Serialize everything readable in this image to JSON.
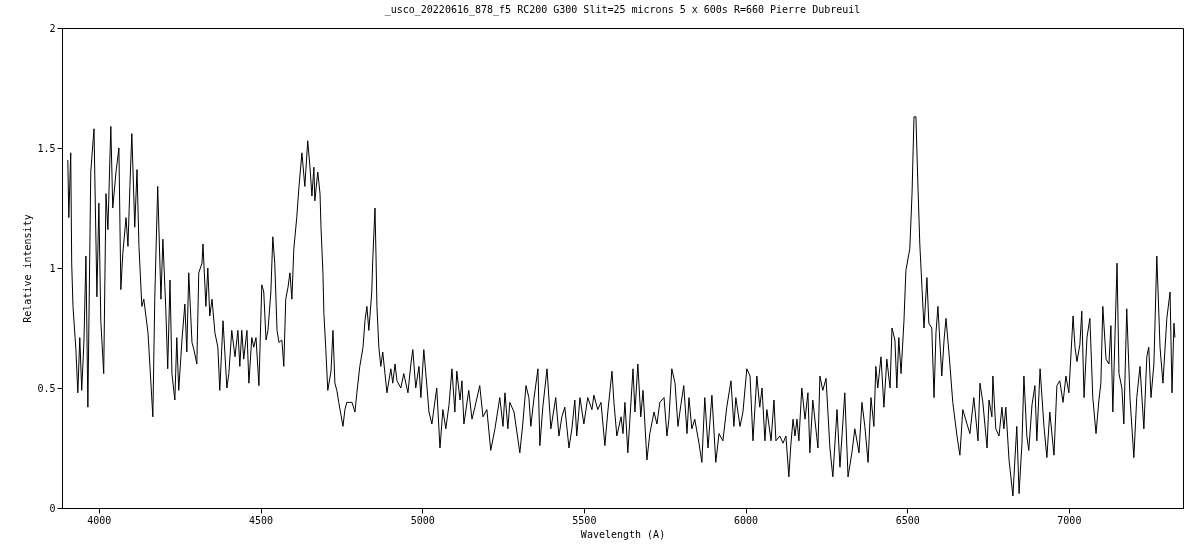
{
  "chart_data": {
    "type": "line",
    "title": "_usco_20220616_878_f5    RC200   G300 Slit=25 microns   5 x 600s  R=660   Pierre Dubreuil",
    "xlabel": "Wavelength (A)",
    "ylabel": "Relative intensity",
    "x": [
      3904,
      3907,
      3913,
      3916,
      3920,
      3929,
      3935,
      3941,
      3947,
      3954,
      3960,
      3966,
      3975,
      3985,
      3994,
      4000,
      4006,
      4015,
      4022,
      4028,
      4037,
      4043,
      4053,
      4062,
      4068,
      4074,
      4084,
      4090,
      4096,
      4102,
      4111,
      4118,
      4124,
      4133,
      4139,
      4152,
      4167,
      4173,
      4182,
      4192,
      4198,
      4207,
      4213,
      4220,
      4226,
      4235,
      4241,
      4247,
      4257,
      4266,
      4272,
      4278,
      4288,
      4294,
      4303,
      4309,
      4319,
      4322,
      4331,
      4337,
      4343,
      4350,
      4359,
      4368,
      4374,
      4384,
      4396,
      4402,
      4411,
      4421,
      4430,
      4436,
      4442,
      4448,
      4458,
      4464,
      4473,
      4479,
      4486,
      4495,
      4504,
      4510,
      4517,
      4523,
      4532,
      4538,
      4544,
      4551,
      4557,
      4566,
      4572,
      4578,
      4585,
      4591,
      4597,
      4603,
      4612,
      4619,
      4628,
      4637,
      4646,
      4653,
      4659,
      4665,
      4668,
      4677,
      4684,
      4687,
      4693,
      4696,
      4702,
      4708,
      4718,
      4724,
      4730,
      4736,
      4742,
      4755,
      4761,
      4767,
      4776,
      4783,
      4792,
      4798,
      4807,
      4817,
      4823,
      4829,
      4835,
      4844,
      4847,
      4854,
      4857,
      4860,
      4866,
      4872,
      4878,
      4891,
      4903,
      4909,
      4916,
      4922,
      4934,
      4943,
      4956,
      4965,
      4971,
      4980,
      4990,
      4996,
      5005,
      5015,
      5021,
      5030,
      5045,
      5055,
      5064,
      5073,
      5083,
      5092,
      5101,
      5107,
      5117,
      5123,
      5129,
      5144,
      5154,
      5163,
      5178,
      5188,
      5200,
      5212,
      5225,
      5240,
      5250,
      5256,
      5265,
      5271,
      5284,
      5302,
      5311,
      5321,
      5330,
      5336,
      5345,
      5358,
      5364,
      5373,
      5386,
      5398,
      5413,
      5423,
      5432,
      5441,
      5454,
      5463,
      5472,
      5478,
      5488,
      5500,
      5512,
      5525,
      5531,
      5543,
      5553,
      5565,
      5574,
      5587,
      5593,
      5602,
      5615,
      5621,
      5627,
      5636,
      5652,
      5658,
      5667,
      5676,
      5683,
      5695,
      5704,
      5717,
      5726,
      5735,
      5748,
      5757,
      5763,
      5772,
      5782,
      5791,
      5800,
      5809,
      5819,
      5825,
      5834,
      5843,
      5856,
      5865,
      5874,
      5884,
      5896,
      5908,
      5918,
      5930,
      5942,
      5955,
      5964,
      5970,
      5983,
      5992,
      6004,
      6014,
      6023,
      6035,
      6044,
      6051,
      6060,
      6066,
      6079,
      6088,
      6094,
      6106,
      6116,
      6125,
      6134,
      6140,
      6147,
      6153,
      6159,
      6165,
      6174,
      6184,
      6193,
      6199,
      6208,
      6224,
      6230,
      6239,
      6249,
      6261,
      6270,
      6283,
      6292,
      6307,
      6317,
      6329,
      6338,
      6351,
      6360,
      6369,
      6379,
      6388,
      6397,
      6403,
      6409,
      6419,
      6428,
      6437,
      6447,
      6453,
      6462,
      6468,
      6474,
      6481,
      6490,
      6496,
      6508,
      6515,
      6521,
      6527,
      6533,
      6539,
      6546,
      6552,
      6561,
      6567,
      6576,
      6583,
      6589,
      6595,
      6607,
      6614,
      6620,
      6629,
      6641,
      6654,
      6663,
      6672,
      6685,
      6694,
      6706,
      6719,
      6725,
      6734,
      6747,
      6753,
      6762,
      6765,
      6774,
      6784,
      6793,
      6799,
      6805,
      6815,
      6827,
      6833,
      6839,
      6846,
      6855,
      6861,
      6870,
      6876,
      6886,
      6895,
      6901,
      6911,
      6923,
      6932,
      6941,
      6954,
      6963,
      6972,
      6982,
      6991,
      7000,
      7013,
      7019,
      7025,
      7034,
      7040,
      7047,
      7056,
      7065,
      7074,
      7084,
      7093,
      7099,
      7105,
      7115,
      7124,
      7130,
      7136,
      7149,
      7155,
      7164,
      7170,
      7179,
      7189,
      7201,
      7210,
      7220,
      7232,
      7241,
      7247,
      7254,
      7263,
      7272,
      7282,
      7291,
      7303,
      7313,
      7319,
      7325,
      7328
    ],
    "series": [
      {
        "color": "#000000",
        "values": [
          1.45,
          1.21,
          1.48,
          1.02,
          0.84,
          0.66,
          0.48,
          0.71,
          0.49,
          0.7,
          1.05,
          0.42,
          1.4,
          1.58,
          0.88,
          1.27,
          0.78,
          0.56,
          1.31,
          1.16,
          1.59,
          1.25,
          1.4,
          1.5,
          0.91,
          1.06,
          1.21,
          1.09,
          1.34,
          1.56,
          1.17,
          1.41,
          1.09,
          0.84,
          0.87,
          0.73,
          0.38,
          0.88,
          1.34,
          0.87,
          1.12,
          0.83,
          0.58,
          0.95,
          0.56,
          0.45,
          0.71,
          0.49,
          0.7,
          0.85,
          0.65,
          0.98,
          0.69,
          0.66,
          0.6,
          0.98,
          1.02,
          1.1,
          0.84,
          1.0,
          0.8,
          0.87,
          0.73,
          0.67,
          0.49,
          0.78,
          0.5,
          0.56,
          0.74,
          0.63,
          0.74,
          0.59,
          0.74,
          0.62,
          0.74,
          0.52,
          0.71,
          0.67,
          0.71,
          0.51,
          0.93,
          0.9,
          0.7,
          0.74,
          0.9,
          1.13,
          1.02,
          0.74,
          0.69,
          0.7,
          0.59,
          0.87,
          0.92,
          0.98,
          0.87,
          1.08,
          1.21,
          1.34,
          1.48,
          1.34,
          1.53,
          1.42,
          1.3,
          1.42,
          1.28,
          1.4,
          1.31,
          1.17,
          0.98,
          0.81,
          0.66,
          0.49,
          0.57,
          0.74,
          0.52,
          0.49,
          0.44,
          0.34,
          0.41,
          0.44,
          0.44,
          0.44,
          0.4,
          0.48,
          0.59,
          0.67,
          0.78,
          0.84,
          0.74,
          0.9,
          1.03,
          1.25,
          1.06,
          0.84,
          0.67,
          0.59,
          0.65,
          0.48,
          0.58,
          0.52,
          0.6,
          0.53,
          0.5,
          0.56,
          0.48,
          0.6,
          0.66,
          0.5,
          0.59,
          0.46,
          0.66,
          0.5,
          0.4,
          0.35,
          0.5,
          0.25,
          0.41,
          0.33,
          0.43,
          0.58,
          0.4,
          0.57,
          0.45,
          0.53,
          0.35,
          0.49,
          0.37,
          0.42,
          0.51,
          0.38,
          0.41,
          0.24,
          0.33,
          0.46,
          0.34,
          0.48,
          0.33,
          0.44,
          0.4,
          0.23,
          0.35,
          0.51,
          0.46,
          0.34,
          0.45,
          0.58,
          0.26,
          0.42,
          0.58,
          0.33,
          0.46,
          0.3,
          0.38,
          0.42,
          0.25,
          0.33,
          0.45,
          0.3,
          0.46,
          0.35,
          0.46,
          0.41,
          0.47,
          0.41,
          0.44,
          0.26,
          0.4,
          0.57,
          0.44,
          0.3,
          0.38,
          0.31,
          0.44,
          0.23,
          0.58,
          0.4,
          0.6,
          0.38,
          0.49,
          0.2,
          0.31,
          0.4,
          0.35,
          0.44,
          0.46,
          0.3,
          0.37,
          0.58,
          0.52,
          0.34,
          0.43,
          0.51,
          0.31,
          0.46,
          0.33,
          0.37,
          0.27,
          0.19,
          0.46,
          0.25,
          0.47,
          0.19,
          0.31,
          0.28,
          0.42,
          0.53,
          0.34,
          0.46,
          0.34,
          0.4,
          0.58,
          0.55,
          0.28,
          0.55,
          0.42,
          0.5,
          0.28,
          0.41,
          0.28,
          0.45,
          0.28,
          0.3,
          0.27,
          0.3,
          0.13,
          0.26,
          0.37,
          0.3,
          0.37,
          0.28,
          0.5,
          0.37,
          0.48,
          0.23,
          0.45,
          0.25,
          0.55,
          0.49,
          0.54,
          0.25,
          0.13,
          0.41,
          0.17,
          0.48,
          0.13,
          0.23,
          0.33,
          0.23,
          0.44,
          0.34,
          0.19,
          0.46,
          0.34,
          0.59,
          0.5,
          0.63,
          0.42,
          0.62,
          0.5,
          0.75,
          0.7,
          0.5,
          0.71,
          0.56,
          0.78,
          0.99,
          1.08,
          1.31,
          1.63,
          1.63,
          1.35,
          1.1,
          0.91,
          0.75,
          0.96,
          0.77,
          0.75,
          0.46,
          0.73,
          0.84,
          0.55,
          0.7,
          0.79,
          0.65,
          0.44,
          0.3,
          0.22,
          0.41,
          0.35,
          0.31,
          0.46,
          0.28,
          0.52,
          0.44,
          0.25,
          0.45,
          0.38,
          0.55,
          0.33,
          0.3,
          0.42,
          0.33,
          0.42,
          0.2,
          0.05,
          0.2,
          0.34,
          0.06,
          0.27,
          0.55,
          0.3,
          0.24,
          0.43,
          0.51,
          0.28,
          0.58,
          0.34,
          0.21,
          0.4,
          0.22,
          0.51,
          0.53,
          0.44,
          0.55,
          0.48,
          0.8,
          0.67,
          0.61,
          0.68,
          0.82,
          0.46,
          0.71,
          0.79,
          0.46,
          0.31,
          0.45,
          0.52,
          0.84,
          0.62,
          0.6,
          0.76,
          0.4,
          1.02,
          0.56,
          0.5,
          0.35,
          0.83,
          0.46,
          0.21,
          0.46,
          0.59,
          0.33,
          0.63,
          0.67,
          0.46,
          0.6,
          1.05,
          0.67,
          0.52,
          0.79,
          0.9,
          0.48,
          0.77,
          0.71
        ]
      }
    ],
    "xlim": [
      3886,
      7353
    ],
    "ylim": [
      0,
      2
    ],
    "xticks": [
      4000,
      4500,
      5000,
      5500,
      6000,
      6500,
      7000
    ],
    "yticks": [
      0,
      0.5,
      1,
      1.5,
      2
    ]
  }
}
